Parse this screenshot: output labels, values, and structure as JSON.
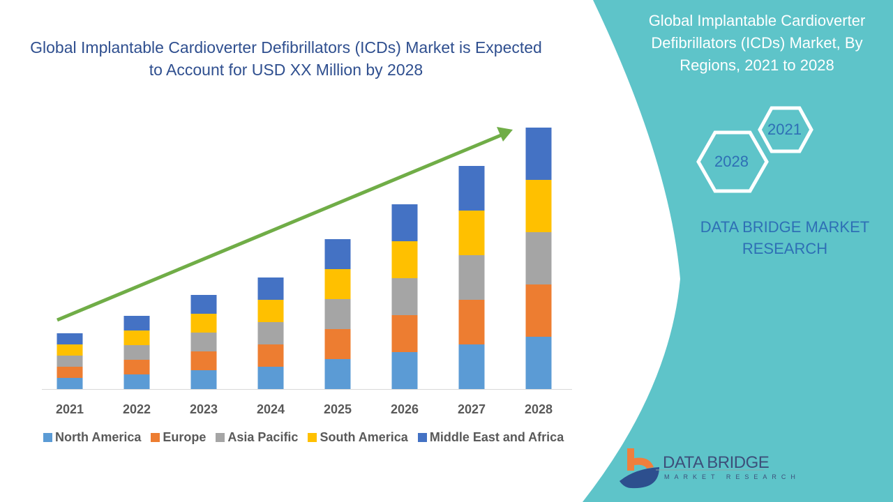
{
  "title": "Global Implantable Cardioverter Defibrillators (ICDs) Market is Expected to Account for USD XX Million by 2028",
  "side_panel": {
    "title": "Global Implantable Cardioverter Defibrillators (ICDs) Market, By Regions, 2021 to 2028",
    "hex_labels": [
      "2021",
      "2028"
    ],
    "brand": "DATA BRIDGE MARKET RESEARCH",
    "logo_name": "DATA BRIDGE",
    "logo_sub": "MARKET RESEARCH",
    "panel_color": "#5ec4c9"
  },
  "chart_data": {
    "type": "bar",
    "stacked": true,
    "title": "Global Implantable Cardioverter Defibrillators (ICDs) Market is Expected to Account for USD XX Million by 2028",
    "categories": [
      "2021",
      "2022",
      "2023",
      "2024",
      "2025",
      "2026",
      "2027",
      "2028"
    ],
    "series": [
      {
        "name": "North America",
        "color": "#5b9bd5",
        "values": [
          16,
          21,
          27,
          32,
          43,
          53,
          64,
          75
        ]
      },
      {
        "name": "Europe",
        "color": "#ed7d31",
        "values": [
          16,
          21,
          27,
          32,
          43,
          53,
          64,
          75
        ]
      },
      {
        "name": "Asia Pacific",
        "color": "#a5a5a5",
        "values": [
          16,
          21,
          27,
          32,
          43,
          53,
          64,
          75
        ]
      },
      {
        "name": "South America",
        "color": "#ffc000",
        "values": [
          16,
          21,
          27,
          32,
          43,
          53,
          64,
          75
        ]
      },
      {
        "name": "Middle East and Africa",
        "color": "#4472c4",
        "values": [
          16,
          21,
          27,
          32,
          43,
          53,
          64,
          75
        ]
      }
    ],
    "ylim": [
      0,
      400
    ],
    "grid": false,
    "y_axis_shown": false,
    "legend_position": "bottom",
    "trend_arrow": {
      "color": "#70ad47",
      "from": "2021",
      "to": "2028"
    }
  }
}
